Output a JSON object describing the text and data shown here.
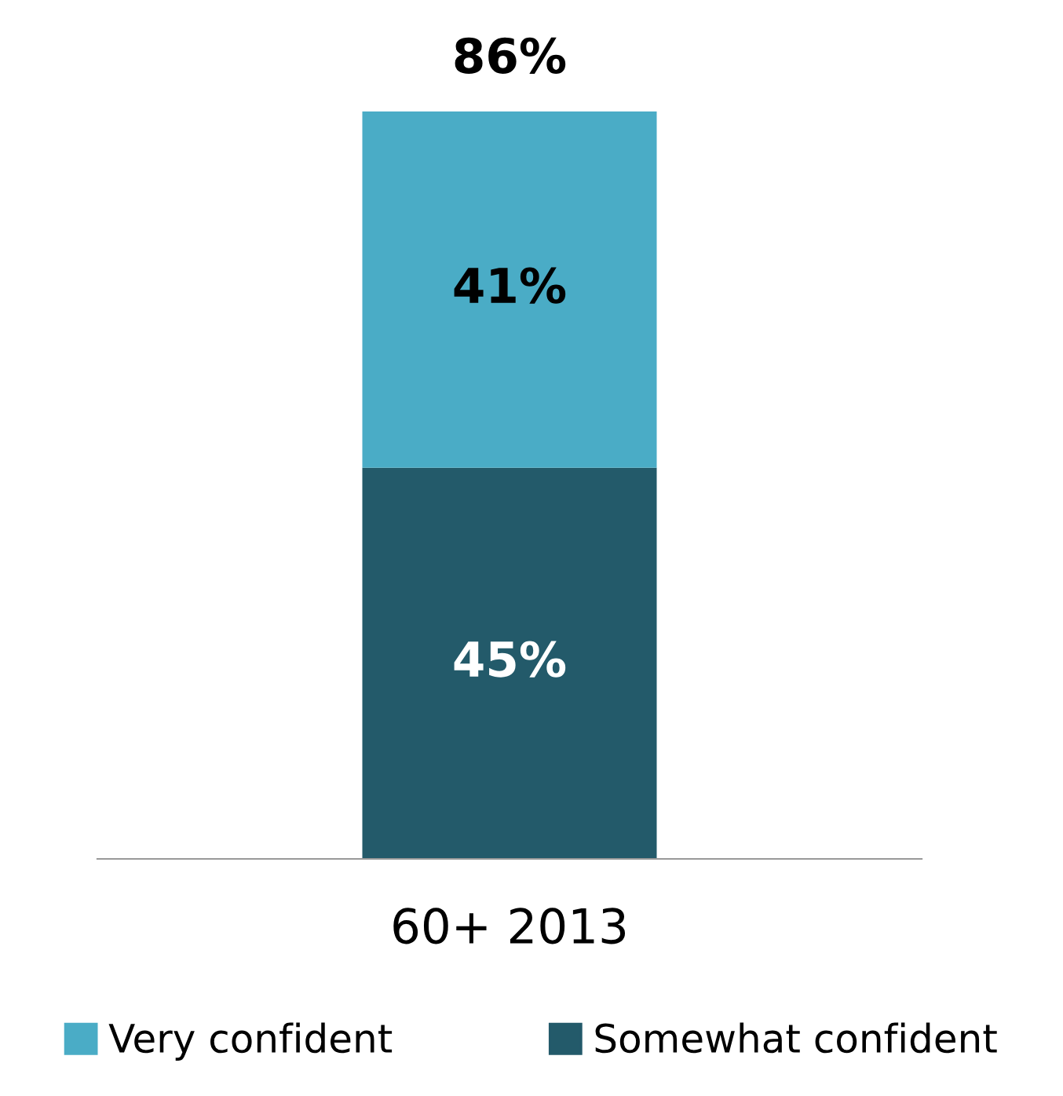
{
  "chart_data": {
    "type": "bar",
    "stacked": true,
    "categories": [
      "60+ 2013"
    ],
    "series": [
      {
        "name": "Somewhat confident",
        "color": "#235a6a",
        "values": [
          45
        ],
        "value_labels": [
          "45%"
        ]
      },
      {
        "name": "Very confident",
        "color": "#4aacc6",
        "values": [
          41
        ],
        "value_labels": [
          "41%"
        ]
      }
    ],
    "totals": [
      "86%"
    ],
    "legend": "bottom",
    "grid": false
  }
}
